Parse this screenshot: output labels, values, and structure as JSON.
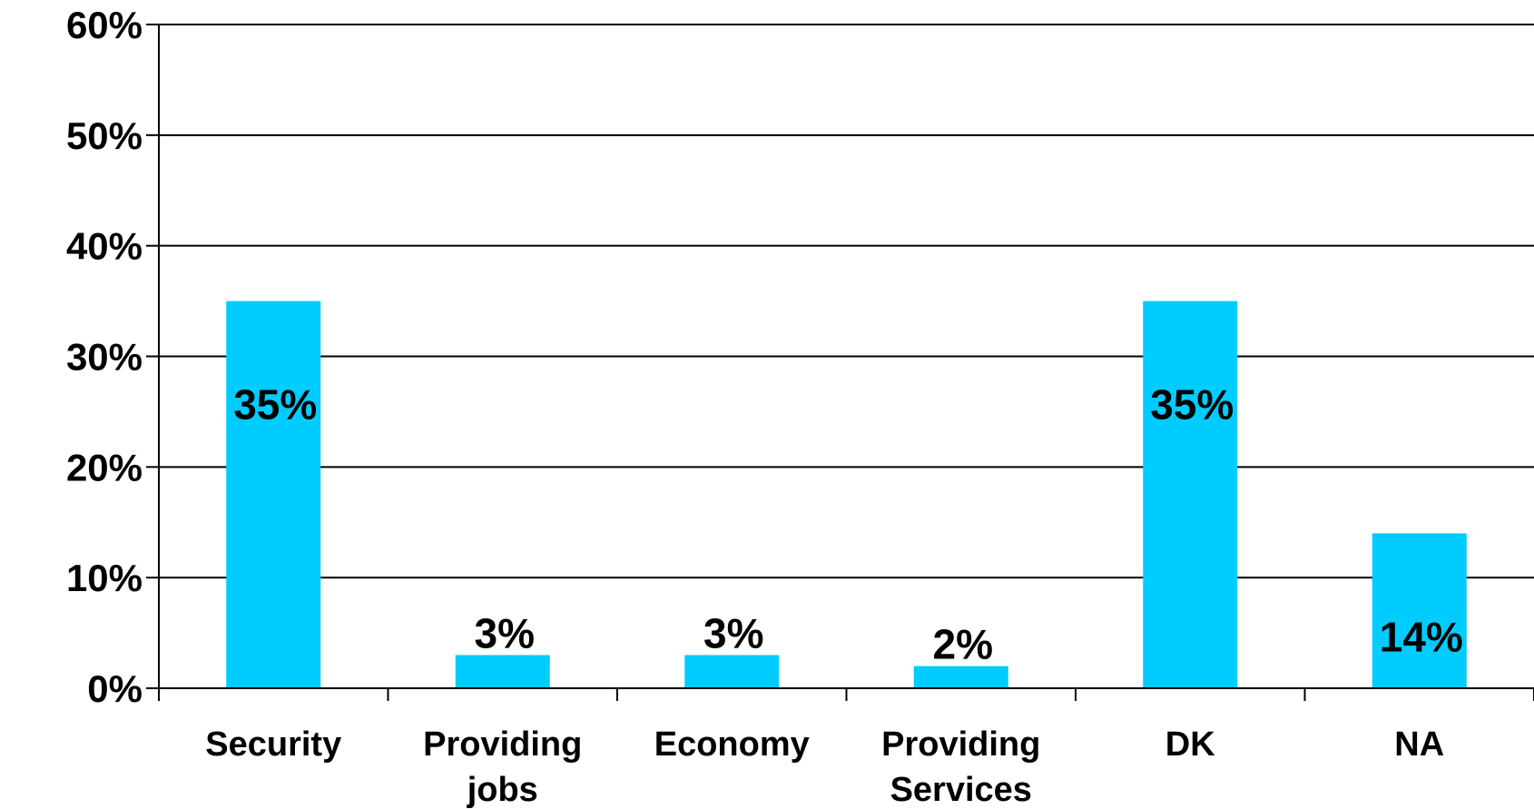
{
  "chart_data": {
    "type": "bar",
    "categories": [
      [
        "Security"
      ],
      [
        "Providing",
        "jobs"
      ],
      [
        "Economy"
      ],
      [
        "Providing",
        "Services"
      ],
      [
        "DK"
      ],
      [
        "NA"
      ]
    ],
    "values": [
      35,
      3,
      3,
      2,
      35,
      14
    ],
    "data_labels": [
      "35%",
      "3%",
      "3%",
      "2%",
      "35%",
      "14%"
    ],
    "ylim": [
      0,
      60
    ],
    "y_ticks": [
      0,
      10,
      20,
      30,
      40,
      50,
      60
    ],
    "y_tick_labels": [
      "0%",
      "10%",
      "20%",
      "30%",
      "40%",
      "50%",
      "60%"
    ],
    "grid": true,
    "legend": "none",
    "bar_color": "#00CCFF",
    "title": "",
    "xlabel": "",
    "ylabel": ""
  }
}
